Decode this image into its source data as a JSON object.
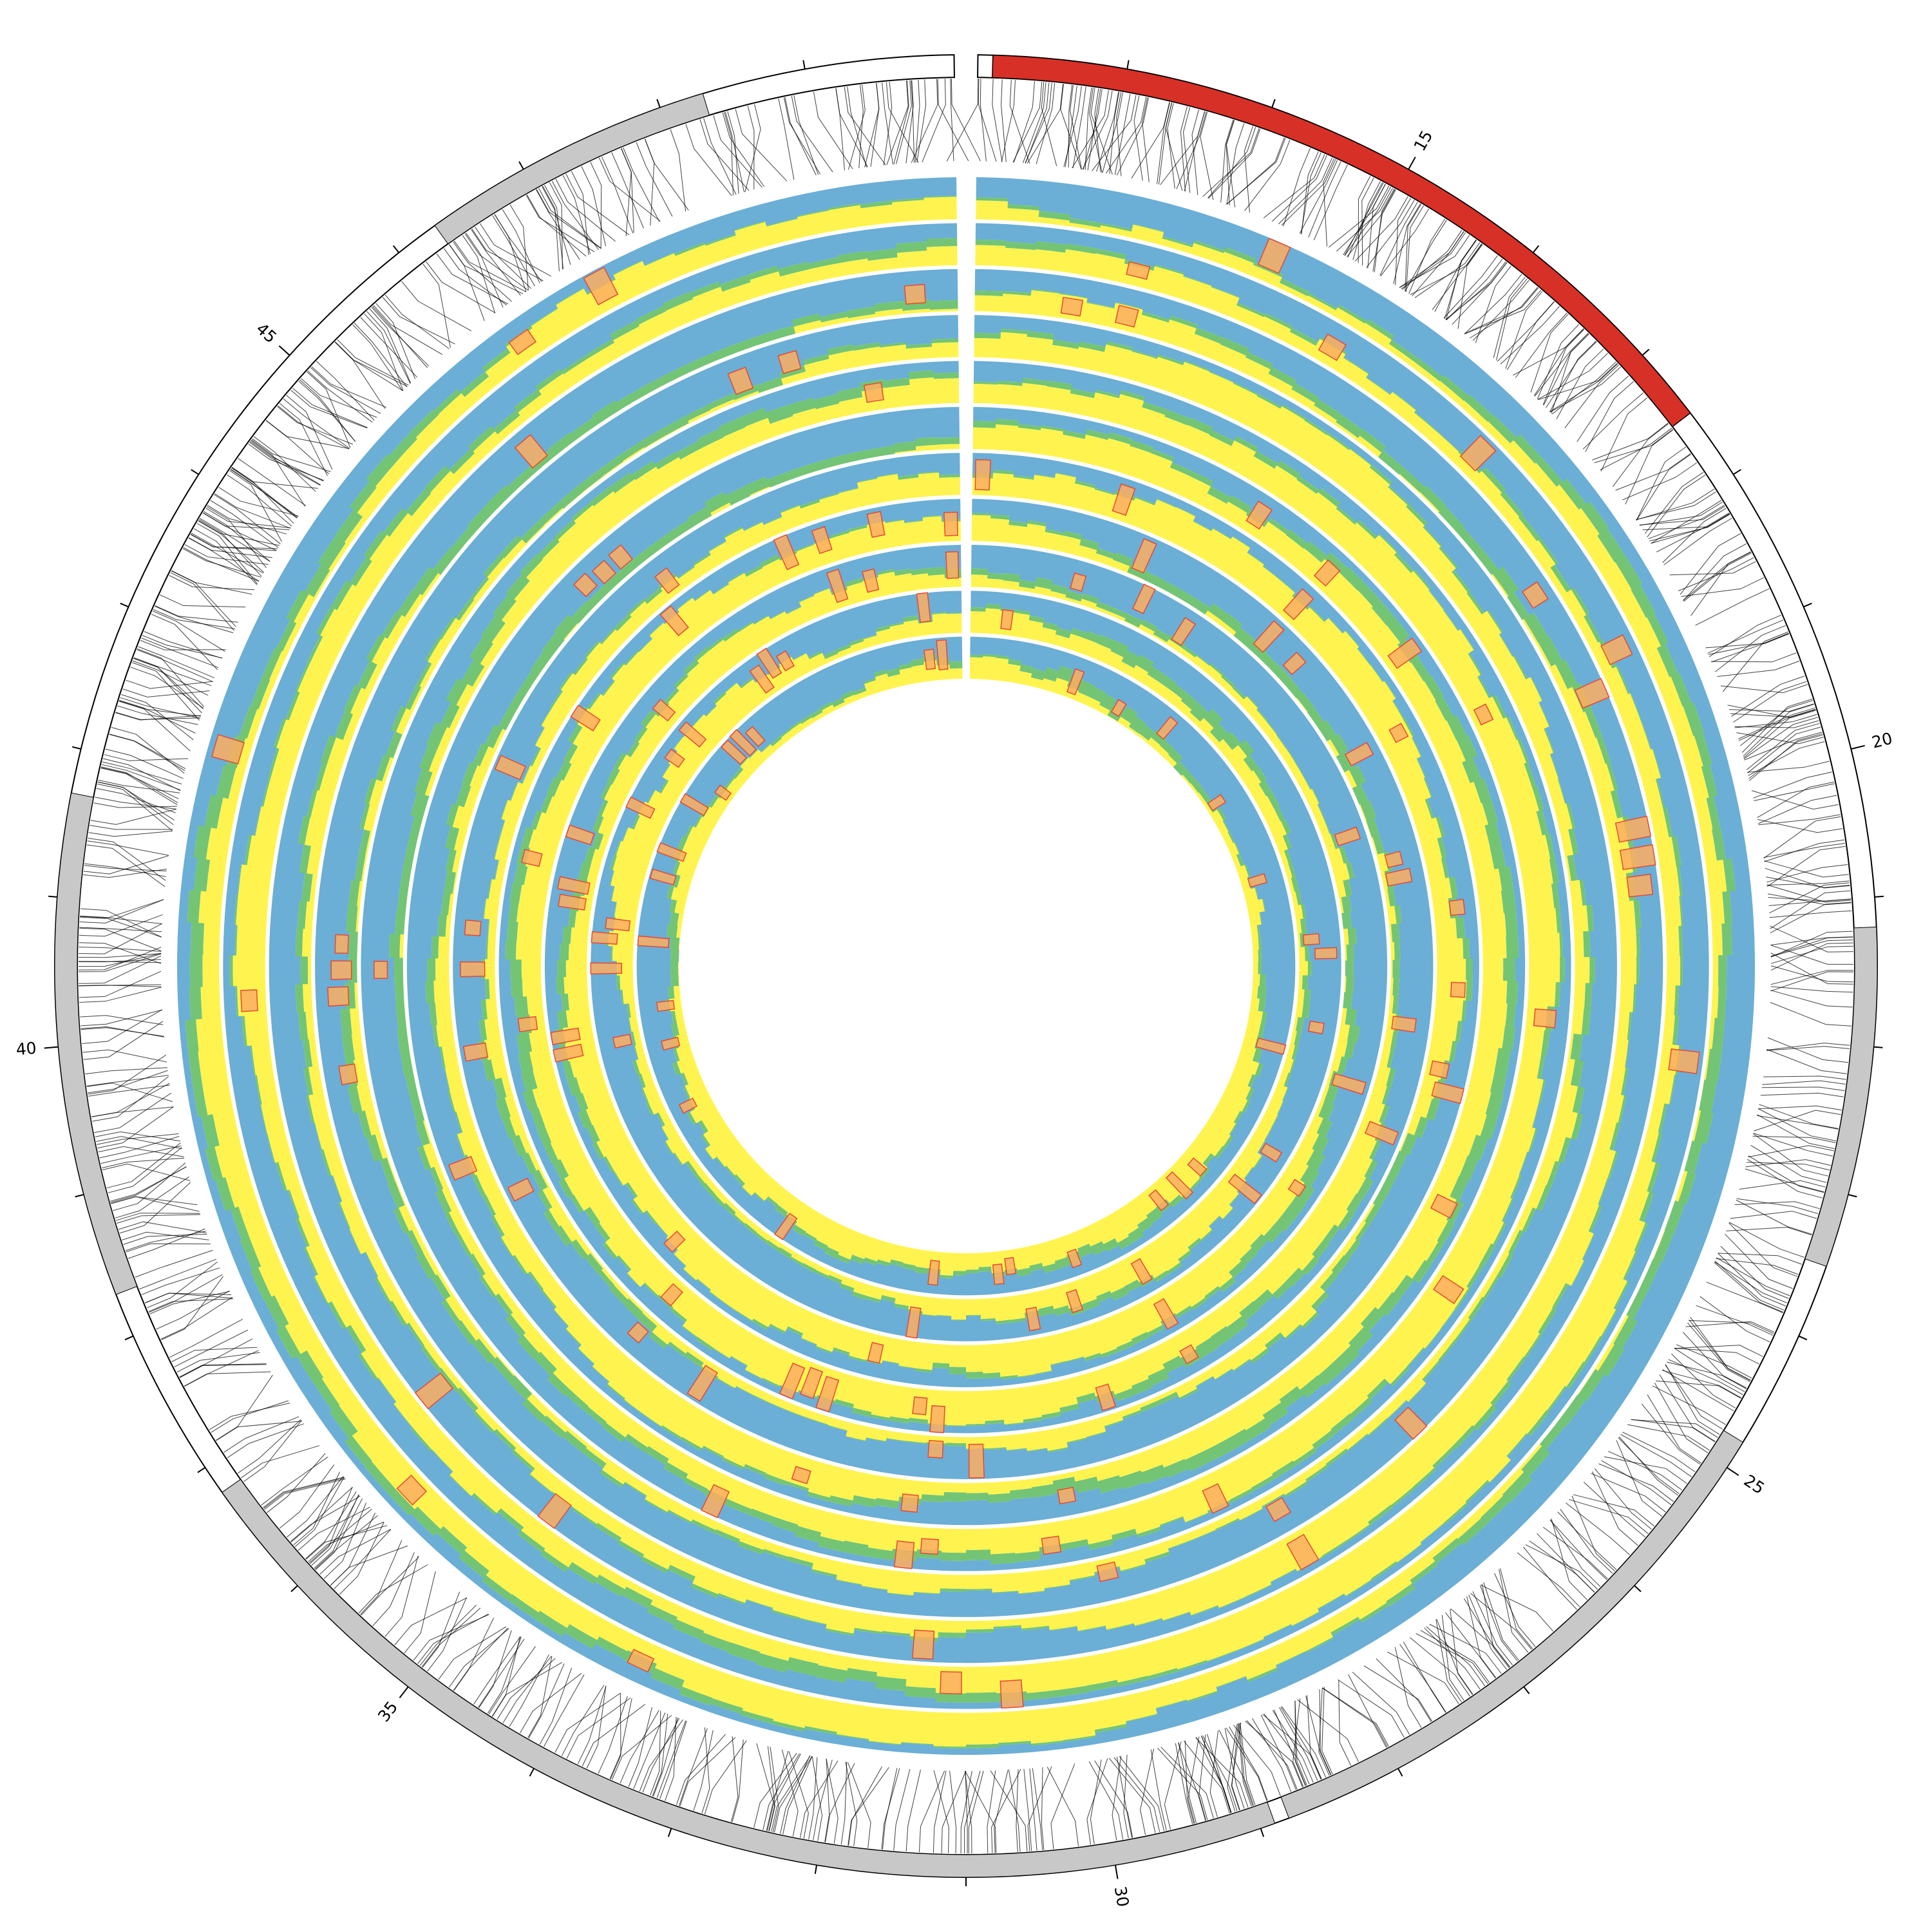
{
  "chart_data": {
    "type": "circos",
    "title": "",
    "chromosome_labels": [
      "15",
      "20",
      "25",
      "30",
      "35",
      "40",
      "45"
    ],
    "chromosome_span": [
      12,
      50
    ],
    "label_step": 5,
    "minor_tick_step": 1,
    "ideogram": {
      "highlight": {
        "start": 12.1,
        "end": 17.5
      },
      "gray_bands": [
        {
          "start": 21.2,
          "end": 23.5
        },
        {
          "start": 24.8,
          "end": 28.8
        },
        {
          "start": 28.9,
          "end": 36.8
        },
        {
          "start": 38.3,
          "end": 41.7
        },
        {
          "start": 46.3,
          "end": 48.3
        }
      ]
    },
    "rings": 11,
    "bins_per_ring": 150,
    "highlight_density": [
      0.05,
      0.05,
      0.06,
      0.07,
      0.08,
      0.09,
      0.1,
      0.11,
      0.12,
      0.14,
      0.16
    ],
    "seed": 7,
    "legend": []
  },
  "colors": {
    "background": "#ffffff",
    "ideogram_highlight": "#d73027",
    "ideogram_band": "#c8c8c8",
    "ideogram_outline": "#000000",
    "state_1": "#6baed6",
    "state_2": "#74c476",
    "state_3": "#fff44f",
    "mark_fill": "#fdae61",
    "mark_stroke": "#e34a33",
    "link": "#000000"
  }
}
